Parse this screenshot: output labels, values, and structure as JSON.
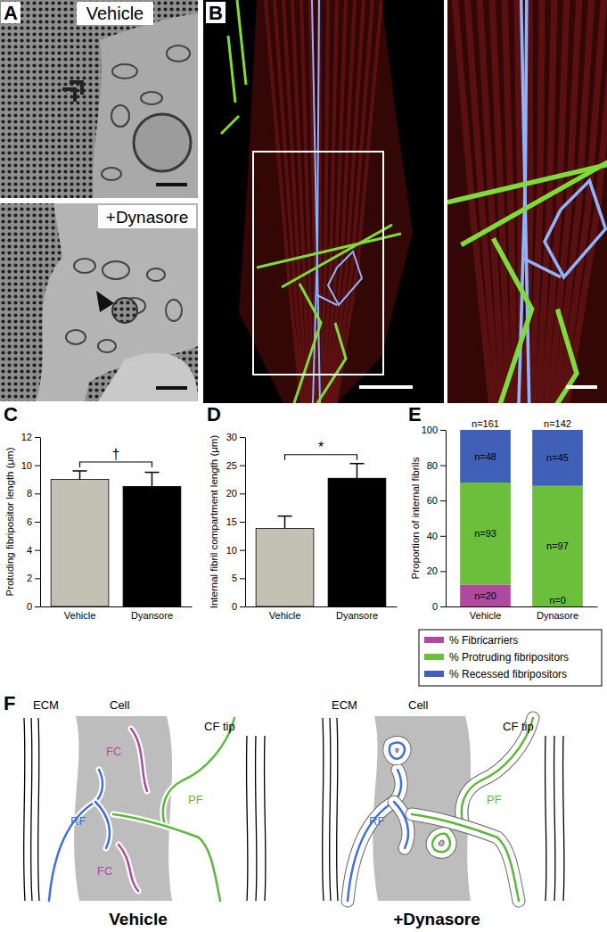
{
  "panel_a": {
    "label": "A",
    "top_title": "Vehicle",
    "bottom_title": "+Dynasore"
  },
  "panel_b": {
    "label": "B"
  },
  "panel_f": {
    "label": "F",
    "conditions": [
      "Vehicle",
      "+Dynasore"
    ],
    "ecm": "ECM",
    "cell": "Cell",
    "cf_tip": "CF tip",
    "fc": "FC",
    "rf": "RF",
    "pf": "PF"
  },
  "chart_data": [
    {
      "type": "bar",
      "label": "C",
      "y_label": "Protuding fibripositor length (μm)",
      "categories": [
        "Vehicle",
        "Dyansore"
      ],
      "values": [
        9.0,
        8.5
      ],
      "errors": [
        0.6,
        1.0
      ],
      "colors": [
        "#c2c2b4",
        "#000000"
      ],
      "significance": "†",
      "ylim": [
        0,
        12
      ],
      "yticks": [
        0,
        2,
        4,
        6,
        8,
        10,
        12
      ]
    },
    {
      "type": "bar",
      "label": "D",
      "y_label": "Internal fibril compartment length (μm)",
      "categories": [
        "Vehicle",
        "Dyansore"
      ],
      "values": [
        13.8,
        22.7
      ],
      "errors": [
        2.2,
        2.6
      ],
      "colors": [
        "#c2c2b4",
        "#000000"
      ],
      "significance": "*",
      "ylim": [
        0,
        30
      ],
      "yticks": [
        0,
        5,
        10,
        15,
        20,
        25,
        30
      ]
    },
    {
      "type": "bar",
      "label": "E",
      "y_label": "Proportion of internal fibrils",
      "stacked": true,
      "legend": "bottom",
      "categories": [
        "Vehicle",
        "Dynasore"
      ],
      "series": [
        {
          "name": "% Fibricarriers",
          "color": "#b04aa0",
          "values": [
            12.4,
            0
          ],
          "count_labels": [
            "n=20",
            "n=0"
          ]
        },
        {
          "name": "% Protruding fibripositors",
          "color": "#6cbf3a",
          "values": [
            57.8,
            68.3
          ],
          "count_labels": [
            "n=93",
            "n=97"
          ]
        },
        {
          "name": "% Recessed fibripositors",
          "color": "#4060b8",
          "values": [
            29.8,
            31.7
          ],
          "count_labels": [
            "n=48",
            "n=45"
          ]
        }
      ],
      "total_labels": [
        "n=161",
        "n=142"
      ],
      "ylim": [
        0,
        100
      ],
      "yticks": [
        0,
        20,
        40,
        60,
        80,
        100
      ]
    }
  ]
}
